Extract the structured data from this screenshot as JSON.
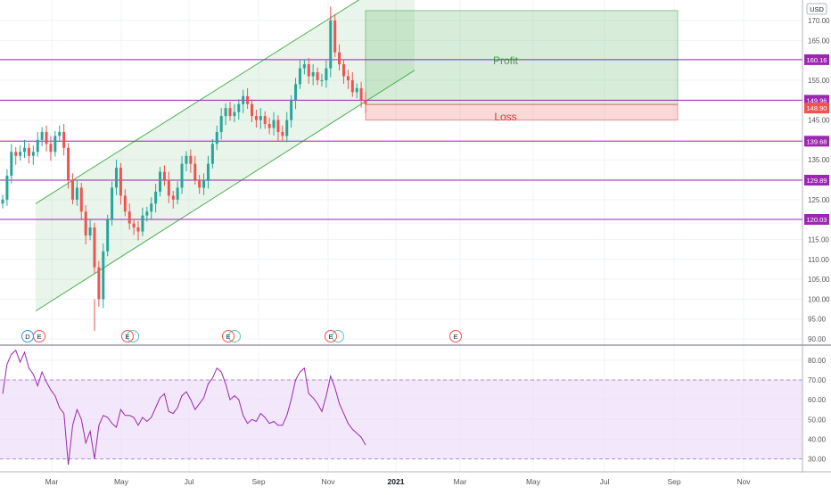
{
  "header": {
    "currency": "USD"
  },
  "colors": {
    "up": "#26a69a",
    "down": "#ef5350",
    "hline": "#9c27b0",
    "channel": "#4caf50",
    "profit_fill": "#4caf50",
    "loss_fill": "#ef5350",
    "rsi_line": "#9c27b0",
    "rsi_band": "#e9d5f7"
  },
  "chart_data": [
    {
      "type": "candlestick",
      "price_range": [
        89,
        175
      ],
      "y_ticks": [
        90,
        95,
        100,
        105,
        110,
        115,
        120,
        125,
        130,
        135,
        140,
        145,
        150,
        155,
        160,
        165,
        170
      ],
      "y_tick_labels": [
        "90.00",
        "95.00",
        "100.00",
        "105.00",
        "110.00",
        "115.00",
        "120.00",
        "125.00",
        "130.00",
        "135.00",
        "140.00",
        "145.00",
        "150.00",
        "155.00",
        "160.00",
        "165.00",
        "170.00"
      ],
      "x_labels": [
        "Mar",
        "May",
        "Jul",
        "Sep",
        "Nov",
        "2021",
        "Mar",
        "May",
        "Jul",
        "Sep",
        "Nov"
      ],
      "horizontal_levels": [
        {
          "value": 160.16,
          "label": "160.16"
        },
        {
          "value": 149.96,
          "label": "149.96"
        },
        {
          "value": 139.68,
          "label": "139.68"
        },
        {
          "value": 129.89,
          "label": "129.89"
        },
        {
          "value": 120.03,
          "label": "120.03"
        }
      ],
      "last_price": {
        "value": 148.9,
        "label": "148.90"
      },
      "position": {
        "entry": 148.9,
        "target": 172.5,
        "stop": 145.0,
        "profit_label": "Profit",
        "loss_label": "Loss"
      },
      "event_markers": [
        "D",
        "E",
        "E",
        "E",
        "E",
        "E"
      ],
      "closes": [
        125,
        131,
        137,
        136,
        137,
        138,
        136,
        137,
        140,
        142,
        139,
        137,
        141,
        142,
        138,
        130,
        125,
        128,
        122,
        116,
        118,
        108,
        100,
        112,
        120,
        128,
        133,
        126,
        122,
        119,
        118,
        117,
        121,
        122,
        124,
        127,
        132,
        130,
        126,
        125,
        128,
        134,
        136,
        134,
        130,
        128,
        130,
        134,
        139,
        142,
        146,
        148,
        146,
        147,
        149,
        151,
        149,
        146,
        145,
        146,
        144,
        143,
        145,
        142,
        141,
        145,
        150,
        154,
        158,
        159,
        156,
        157,
        155,
        155,
        158,
        170,
        162,
        159,
        156,
        155,
        152,
        153,
        150,
        149
      ]
    },
    {
      "type": "line",
      "name": "RSI",
      "y_range": [
        25,
        85
      ],
      "y_ticks": [
        30,
        40,
        50,
        60,
        70,
        80
      ],
      "y_tick_labels": [
        "30.00",
        "40.00",
        "50.00",
        "60.00",
        "70.00",
        "80.00"
      ],
      "band": [
        30,
        70
      ],
      "values": [
        63,
        78,
        83,
        85,
        79,
        84,
        76,
        73,
        67,
        74,
        69,
        65,
        62,
        56,
        53,
        27,
        47,
        55,
        50,
        38,
        44,
        30,
        47,
        52,
        51,
        48,
        46,
        55,
        52,
        52,
        51,
        47,
        51,
        49,
        51,
        56,
        61,
        63,
        54,
        53,
        56,
        62,
        64,
        60,
        55,
        58,
        61,
        68,
        71,
        76,
        74,
        68,
        60,
        62,
        60,
        52,
        48,
        50,
        49,
        53,
        51,
        48,
        49,
        47,
        47,
        52,
        60,
        70,
        74,
        76,
        63,
        61,
        58,
        54,
        62,
        72,
        66,
        58,
        53,
        48,
        45,
        43,
        41,
        37
      ]
    }
  ]
}
